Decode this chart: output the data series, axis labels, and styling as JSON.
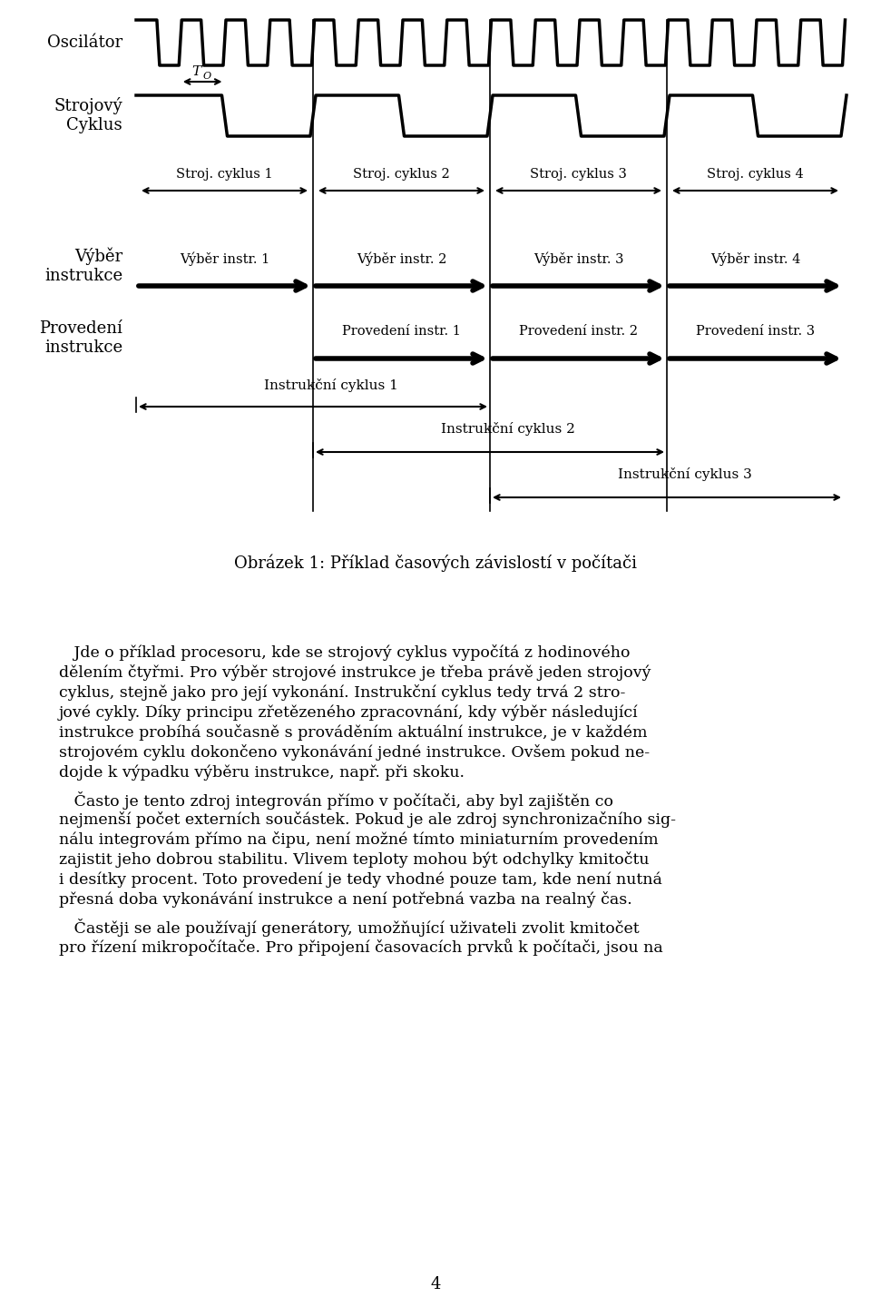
{
  "bg_color": "#ffffff",
  "line_color": "#000000",
  "text_color": "#000000",
  "fig_width": 9.6,
  "fig_height": 14.4,
  "osc_label": "Oscilátor",
  "machine_label": "Strojový\nCyklus",
  "fetch_label": "Výběr\ninstrukce",
  "exec_label": "Provedení\ninstrukce",
  "T0_label": "T",
  "stroj_labels": [
    "Stroj. cyklus 1",
    "Stroj. cyklus 2",
    "Stroj. cyklus 3",
    "Stroj. cyklus 4"
  ],
  "fetch_sublabels": [
    "Výběr instr. 1",
    "Výběr instr. 2",
    "Výběr instr. 3",
    "Výběr instr. 4"
  ],
  "exec_sublabels": [
    "Provedení instr. 1",
    "Provedení instr. 2",
    "Provedení instr. 3"
  ],
  "instr_cycle_labels": [
    "Instrukční cyklus 1",
    "Instrukční cyklus 2",
    "Instrukční cyklus 3"
  ],
  "caption": "Obrázek 1: Příklad časových závislostí v počítači",
  "body_paragraphs": [
    "   Jde o příklad procesoru, kde se strojový cyklus vypočítá z hodinového dělením čtyřmi. Pro výběr strojové instrukce je třeba právě jeden strojový cyklus, stejně jako pro její vykonání. Instrukční cyklus tedy trvá 2 stro-jové cykly. Díky principu zřetězeného zpracovnání, kdy výběr následující instrukce probíhá současně s prováděním aktuální instrukce, je v každém strojovém cyklu dokončeno vykonávání jedné instrukce. Ovšem pokud ne-dojde k výpadku výběru instrukce, např. při skoku.",
    "   Často je tento zdroj integrován přímo v počítači, aby byl zajištěn co nejmenší počet externích součástek. Pokud je ale zdroj synchronizačního sig-nálu integrovám přímo na čipu, není možné tímto miniaturním provedením zajistit jeho dobrou stabilitu. Vlivem teploty mohou být odchylky kmitočtu i desítky procent. Toto provedení je tedy vhodné pouze tam, kde není nutná přesná doba vykonávání instrukce a není potřebná vazba na realný čas.",
    "   Častěji se ale používají generátory, umožňující uživateli zvolit kmitočet pro řízení mikropočítače. Pro připojení časovacích prvků k počítači, jsou na"
  ],
  "page_number": "4"
}
